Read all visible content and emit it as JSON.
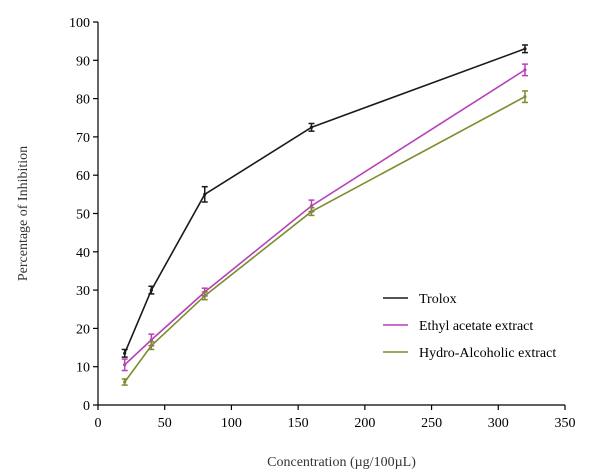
{
  "chart_data": {
    "type": "line",
    "title": "",
    "xlabel": "Concentration (µg/100µL)",
    "ylabel": "Percentage of Inhibition",
    "xlim": [
      0,
      350
    ],
    "ylim": [
      0,
      100
    ],
    "xticks": [
      0,
      50,
      100,
      150,
      200,
      250,
      300,
      350
    ],
    "yticks": [
      0,
      10,
      20,
      30,
      40,
      50,
      60,
      70,
      80,
      90,
      100
    ],
    "grid": false,
    "legend_position": "bottom-right",
    "x": [
      20,
      40,
      80,
      160,
      320
    ],
    "series": [
      {
        "name": "Trolox",
        "color": "#1a1a1a",
        "values": [
          13.5,
          30,
          55,
          72.5,
          93
        ],
        "errors": [
          1.0,
          1.0,
          2.0,
          1.0,
          1.0
        ]
      },
      {
        "name": "Ethyl acetate extract",
        "color": "#b83fb8",
        "values": [
          10.5,
          17,
          29.5,
          52,
          87.5
        ],
        "errors": [
          1.5,
          1.5,
          1.0,
          1.5,
          1.5
        ]
      },
      {
        "name": "Hydro-Alcoholic extract",
        "color": "#7d8c2d",
        "values": [
          6,
          15.5,
          28.5,
          50.5,
          80.5
        ],
        "errors": [
          0.8,
          1.0,
          1.0,
          1.0,
          1.5
        ]
      }
    ]
  }
}
